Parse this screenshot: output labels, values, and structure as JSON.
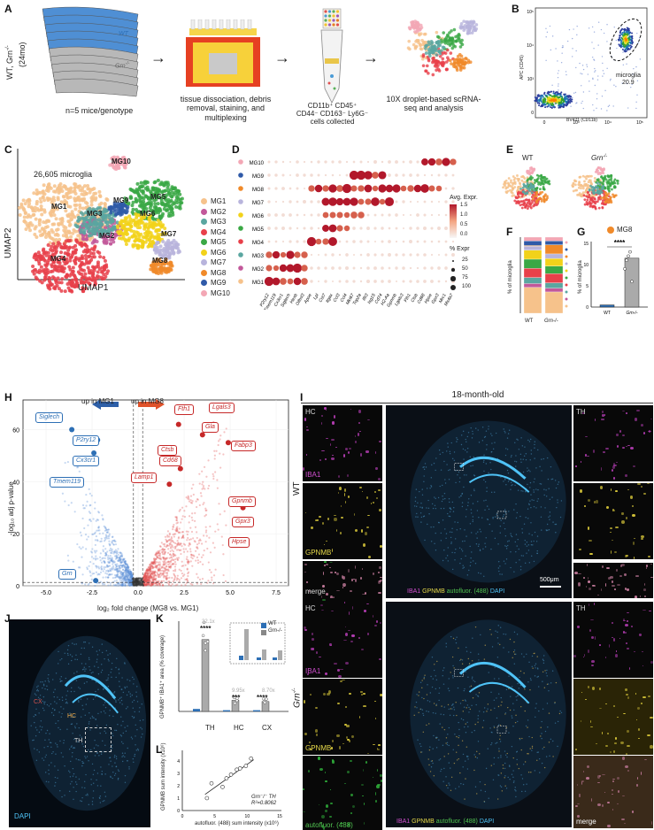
{
  "panels": {
    "A": "A",
    "B": "B",
    "C": "C",
    "D": "D",
    "E": "E",
    "F": "F",
    "G": "G",
    "H": "H",
    "I": "I",
    "J": "J",
    "K": "K",
    "L": "L"
  },
  "panelA": {
    "genotype_label": "WT, Grn",
    "genotype_sup": "-/-",
    "age": "(24mo)",
    "wt": "WT",
    "grn": "Grn",
    "grn_sup": "-/-",
    "n": "n=5 mice/genotype",
    "step1": "tissue dissociation, debris removal, staining, and multiplexing",
    "step2_line1": "CD11b⁺ CD45⁺",
    "step2_line2": "CD44⁻ CD163⁻ Ly6G⁻",
    "step2_line3": "cells collected",
    "step3": "10X droplet-based scRNA-seq and analysis"
  },
  "panelB": {
    "ylabel": "APC (CD45)",
    "xlabel": "BV421 (CD11b)",
    "gate_label": "microglia",
    "gate_value": "20.9",
    "yticks": [
      "10⁵",
      "10⁴",
      "10³",
      "0"
    ],
    "xticks": [
      "0",
      "10³",
      "10⁴",
      "10⁵"
    ]
  },
  "panelC": {
    "count": "26,605 microglia",
    "xlabel": "UMAP1",
    "ylabel": "UMAP2",
    "clusters": [
      {
        "name": "MG1",
        "color": "#f6c28b"
      },
      {
        "name": "MG2",
        "color": "#c2589a"
      },
      {
        "name": "MG3",
        "color": "#5aa6a0"
      },
      {
        "name": "MG4",
        "color": "#e8404a"
      },
      {
        "name": "MG5",
        "color": "#3aa845"
      },
      {
        "name": "MG6",
        "color": "#f2d21a"
      },
      {
        "name": "MG7",
        "color": "#b8b4dc"
      },
      {
        "name": "MG8",
        "color": "#f08a2a"
      },
      {
        "name": "MG9",
        "color": "#2f5aa8"
      },
      {
        "name": "MG10",
        "color": "#f3a7b5"
      }
    ]
  },
  "panelD": {
    "rows": [
      "MG10",
      "MG9",
      "MG8",
      "MG7",
      "MG6",
      "MG5",
      "MG4",
      "MG3",
      "MG2",
      "MG1"
    ],
    "genes": [
      "P2ry12",
      "Tmem119",
      "Cx3cr1",
      "Siglech",
      "Hexb",
      "Olfml3",
      "Apoe",
      "Lpl",
      "Cst7",
      "Itgax",
      "Ccl3",
      "Ccl4",
      "Mki67",
      "Top2a",
      "Ifit3",
      "Isg15",
      "Cd74",
      "H2-Aa",
      "Gpnmb",
      "Lgals3",
      "Fth1",
      "Ctsb",
      "Cd68",
      "Hpse",
      "Gpx3",
      "Mrc1",
      "Ms4a7"
    ],
    "legend_expr": "Avg. Expr.",
    "expr_ticks": [
      "1.5",
      "1.0",
      "0.5",
      "0.0"
    ],
    "legend_pct": "% Expr",
    "pct_ticks": [
      "25",
      "50",
      "75",
      "100"
    ]
  },
  "panelE": {
    "wt": "WT",
    "grn": "Grn",
    "grn_sup": "-/-"
  },
  "panelF": {
    "ylabel": "% of microglia",
    "xcats": [
      "WT",
      "Grn-/-"
    ]
  },
  "panelG": {
    "legend": "MG8",
    "ylabel": "% of microglia",
    "sig": "****",
    "xcats": [
      "WT",
      "Grn-/-"
    ],
    "yticks": [
      "0",
      "5",
      "10",
      "15"
    ]
  },
  "chart_data": [
    {
      "type": "bar",
      "panel": "G",
      "categories": [
        "WT",
        "Grn-/-"
      ],
      "values": [
        0.5,
        11.5
      ],
      "ylim": [
        0,
        15
      ],
      "ylabel": "% of microglia"
    },
    {
      "type": "scatter",
      "panel": "L",
      "xlabel": "autofluor. (488) sum intensity (x10⁶)",
      "ylabel": "GPNMB sum intensity (x10⁶)",
      "x": [
        3.8,
        4.5,
        6.2,
        6.8,
        7.5,
        8.4,
        8.9,
        9.8,
        10.6
      ],
      "y": [
        1.0,
        2.2,
        1.9,
        2.6,
        2.9,
        3.3,
        3.4,
        3.6,
        4.2
      ],
      "xlim": [
        0,
        15
      ],
      "annotation": "Grn-/- TH R²=0.8062"
    }
  ],
  "panelH": {
    "up_left": "up in MG1",
    "up_right": "up in MG8",
    "xlabel": "log₂ fold change (MG8 vs. MG1)",
    "ylabel": "-log₁₀ adj p-value",
    "xticks": [
      "-5.0",
      "-2.5",
      "0.0",
      "2.5",
      "5.0",
      "7.5"
    ],
    "yticks": [
      "0",
      "20",
      "40",
      "60"
    ],
    "blue_genes": [
      "Siglech",
      "P2ry12",
      "Cx3cr1",
      "Tmem119",
      "Grn"
    ],
    "red_genes": [
      "Fth1",
      "Lgals3",
      "Gla",
      "Fabp3",
      "Ctsb",
      "Cd68",
      "Lamp1",
      "Gpnmb",
      "Gpx3",
      "Hpse"
    ]
  },
  "panelI": {
    "title": "18-month-old",
    "wt": "WT",
    "grn": "Grn",
    "grn_sup": "-/-",
    "hc": "HC",
    "th": "TH",
    "iba1": "IBA1",
    "gpnmb": "GPNMB",
    "autofluor": "autofluor. (488)",
    "merge": "merge",
    "dapi": "DAPI",
    "scale": "500μm"
  },
  "panelJ": {
    "dapi": "DAPI",
    "cx": "CX",
    "hc": "HC",
    "th": "TH"
  },
  "panelK": {
    "ylabel": "GPNMB⁺ IBA1⁺ area (% coverage)",
    "fold_th": "22.1x",
    "fold_hc": "9.95x",
    "fold_cx": "8.70x",
    "sig_th": "****",
    "sig_hc": "***",
    "sig_cx": "****",
    "legend_wt": "WT",
    "legend_grn": "Grn-/-",
    "xcats": [
      "TH",
      "HC",
      "CX"
    ]
  },
  "panelL": {
    "annot1": "Grn⁻/⁻ TH",
    "annot2": "R²=0.8062",
    "xticks": [
      "0",
      "5",
      "10",
      "15"
    ],
    "yticks": [
      "0",
      "1",
      "2",
      "3",
      "4"
    ]
  },
  "colors": {
    "wt": "#2d6fb5",
    "grn": "#888888",
    "up_mg1": "#2d5fa8",
    "up_mg8": "#e0522a"
  }
}
